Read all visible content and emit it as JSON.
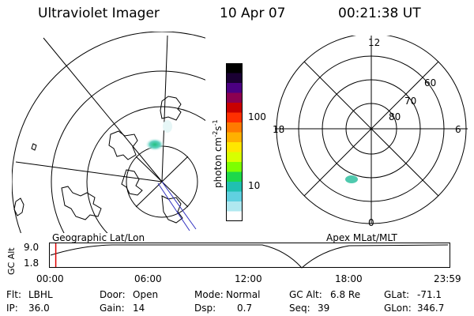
{
  "header": {
    "title": "Ultraviolet Imager",
    "date": "10 Apr 07",
    "time": "00:21:38 UT"
  },
  "colorbar": {
    "unit_prefix": "photon cm",
    "unit_exp1": "-2",
    "unit_mid": "s",
    "unit_exp2": "-1",
    "tick_high": "100",
    "tick_low": "10",
    "colors": [
      "#000000",
      "#1a0033",
      "#4b0082",
      "#8b0050",
      "#c80000",
      "#ff3000",
      "#ff7a00",
      "#ffb000",
      "#ffe600",
      "#d8ff00",
      "#7dff00",
      "#1dd84a",
      "#20c0b0",
      "#60d0e0",
      "#b0e8f0",
      "#ffffff"
    ]
  },
  "geographic": {
    "label": "Geographic Lat/Lon"
  },
  "apex": {
    "label": "Apex  MLat/MLT",
    "mlt_12": "12",
    "mlt_18": "18",
    "mlt_6": "6",
    "mlt_0": "0",
    "lat_60": "60",
    "lat_70": "70",
    "lat_80": "80"
  },
  "altitude_plot": {
    "ylabel": "GC Alt",
    "ymax": "9.0",
    "ymin": "1.8",
    "x_ticks": [
      "00:00",
      "06:00",
      "12:00",
      "18:00",
      "23:59"
    ],
    "current_fraction": 0.015
  },
  "status": {
    "flt_label": "Flt:",
    "flt_value": "LBHL",
    "ip_label": "IP:",
    "ip_value": "36.0",
    "door_label": "Door:",
    "door_value": "Open",
    "gain_label": "Gain:",
    "gain_value": "14",
    "mode_label": "Mode:",
    "mode_value": "Normal",
    "dsp_label": "Dsp:",
    "dsp_value": "0.7",
    "gcalt_label": "GC Alt:",
    "gcalt_value": "6.8 Re",
    "seq_label": "Seq:",
    "seq_value": "39",
    "glat_label": "GLat:",
    "glat_value": "-71.1",
    "glon_label": "GLon:",
    "glon_value": "346.7"
  }
}
